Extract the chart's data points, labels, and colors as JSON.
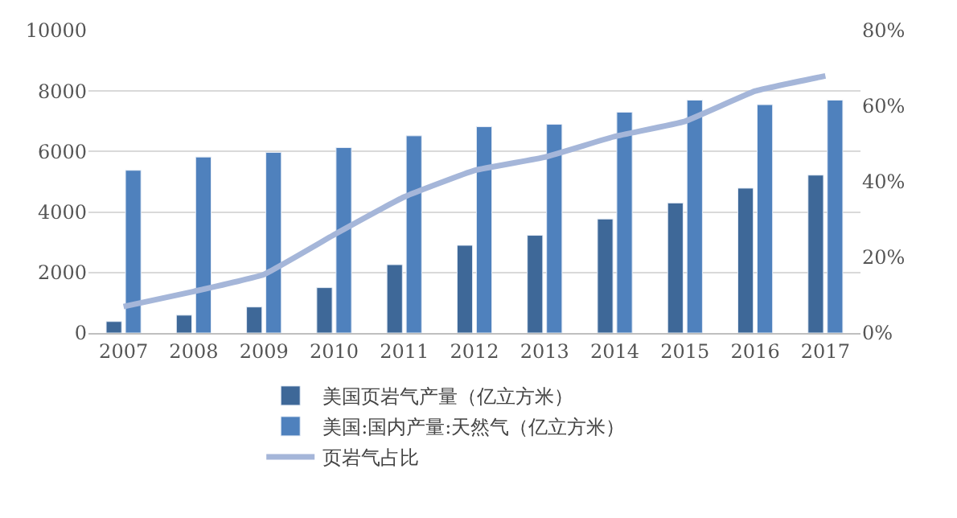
{
  "chart_data": {
    "type": "bar",
    "categories": [
      "2007",
      "2008",
      "2009",
      "2010",
      "2011",
      "2012",
      "2013",
      "2014",
      "2015",
      "2016",
      "2017"
    ],
    "series": [
      {
        "name": "美国页岩气产量（亿立方米）",
        "color": "#3e6898",
        "values": [
          380,
          590,
          860,
          1500,
          2260,
          2900,
          3230,
          3770,
          4300,
          4790,
          5220
        ]
      },
      {
        "name": "美国:国内产量:天然气（亿立方米）",
        "color": "#4f81bd",
        "values": [
          5380,
          5820,
          5970,
          6130,
          6520,
          6820,
          6900,
          7300,
          7700,
          7550,
          7700
        ]
      },
      {
        "name": "页岩气占比",
        "type": "line",
        "axis": "y2",
        "color": "#a5b6d9",
        "values": [
          7,
          11,
          15.5,
          26,
          36,
          43,
          46.5,
          52,
          56,
          64,
          68
        ]
      }
    ],
    "ylim": [
      0,
      10000
    ],
    "yticks": [
      0,
      2000,
      4000,
      6000,
      8000,
      10000
    ],
    "y2lim": [
      0,
      80
    ],
    "y2ticks": [
      {
        "value": 0,
        "label": "0%"
      },
      {
        "value": 20,
        "label": "20%"
      },
      {
        "value": 40,
        "label": "40%"
      },
      {
        "value": 60,
        "label": "60%"
      },
      {
        "value": 80,
        "label": "80%"
      }
    ],
    "grid": "y",
    "legend": "bottom",
    "marker": "none"
  }
}
